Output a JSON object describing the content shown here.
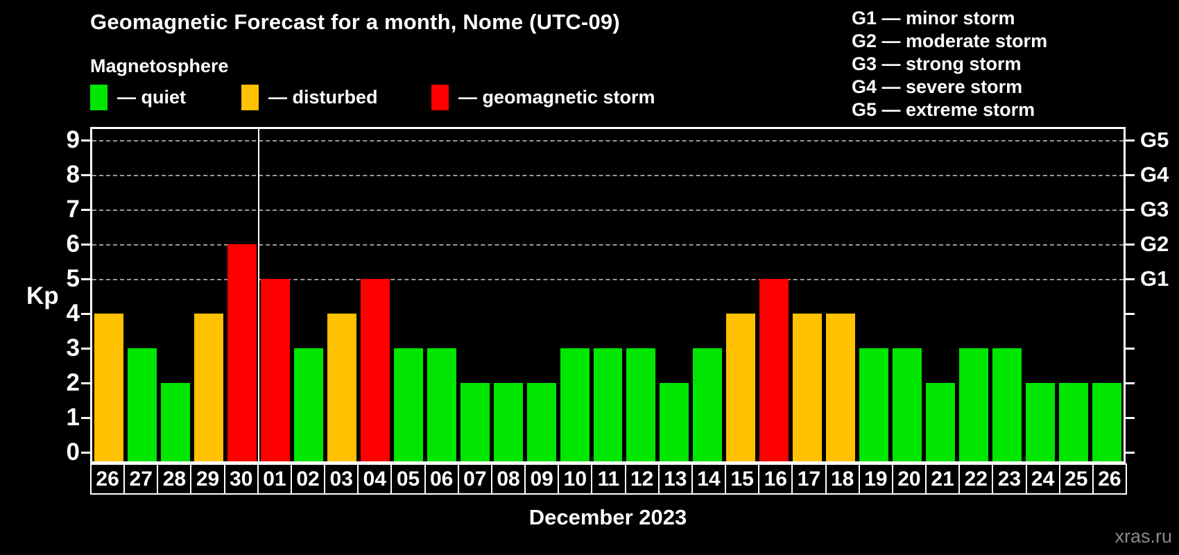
{
  "header": {
    "title": "Geomagnetic Forecast for a month, Nome (UTC-09)",
    "subtitle": "Magnetosphere"
  },
  "legend": {
    "items": [
      {
        "label": "— quiet",
        "status": "quiet",
        "color": "#00e600"
      },
      {
        "label": "— disturbed",
        "status": "disturbed",
        "color": "#ffc100"
      },
      {
        "label": "— geomagnetic storm",
        "status": "storm",
        "color": "#ff0000"
      }
    ]
  },
  "storm_scale_legend": {
    "lines": [
      "G1 — minor storm",
      "G2 — moderate storm",
      "G3 — strong storm",
      "G4 — severe storm",
      "G5 — extreme storm"
    ]
  },
  "chart_data": {
    "type": "bar",
    "title": "Geomagnetic Forecast for a month, Nome (UTC-09)",
    "subtitle": "Magnetosphere",
    "xlabel": "December 2023",
    "ylabel": "Kp",
    "ylim": [
      0,
      9
    ],
    "yticks": [
      0,
      1,
      2,
      3,
      4,
      5,
      6,
      7,
      8,
      9
    ],
    "gridlines_at": [
      5,
      6,
      7,
      8,
      9
    ],
    "grid_style": "dashed",
    "legend_position": "top",
    "right_axis_labels": [
      {
        "value": 5,
        "label": "G1"
      },
      {
        "value": 6,
        "label": "G2"
      },
      {
        "value": 7,
        "label": "G3"
      },
      {
        "value": 8,
        "label": "G4"
      },
      {
        "value": 9,
        "label": "G5"
      }
    ],
    "month_separator_after_index": 4,
    "categories": [
      "26",
      "27",
      "28",
      "29",
      "30",
      "01",
      "02",
      "03",
      "04",
      "05",
      "06",
      "07",
      "08",
      "09",
      "10",
      "11",
      "12",
      "13",
      "14",
      "15",
      "16",
      "17",
      "18",
      "19",
      "20",
      "21",
      "22",
      "23",
      "24",
      "25",
      "26"
    ],
    "values": [
      4,
      3,
      2,
      4,
      6,
      5,
      3,
      4,
      5,
      3,
      3,
      2,
      2,
      2,
      3,
      3,
      3,
      2,
      3,
      4,
      5,
      4,
      4,
      3,
      3,
      2,
      3,
      3,
      2,
      2,
      2
    ],
    "statuses": [
      "disturbed",
      "quiet",
      "quiet",
      "disturbed",
      "storm",
      "storm",
      "quiet",
      "disturbed",
      "storm",
      "quiet",
      "quiet",
      "quiet",
      "quiet",
      "quiet",
      "quiet",
      "quiet",
      "quiet",
      "quiet",
      "quiet",
      "disturbed",
      "storm",
      "disturbed",
      "disturbed",
      "quiet",
      "quiet",
      "quiet",
      "quiet",
      "quiet",
      "quiet",
      "quiet",
      "quiet"
    ]
  },
  "axis": {
    "kp_label": "Kp"
  },
  "footer": {
    "month_label": "December 2023",
    "watermark": "xras.ru"
  },
  "colors": {
    "background": "#000000",
    "quiet": "#00e600",
    "disturbed": "#ffc100",
    "storm": "#ff0000",
    "axis": "#ffffff",
    "grid": "#999999",
    "text": "#ffffff",
    "watermark": "#8a8a8a"
  }
}
